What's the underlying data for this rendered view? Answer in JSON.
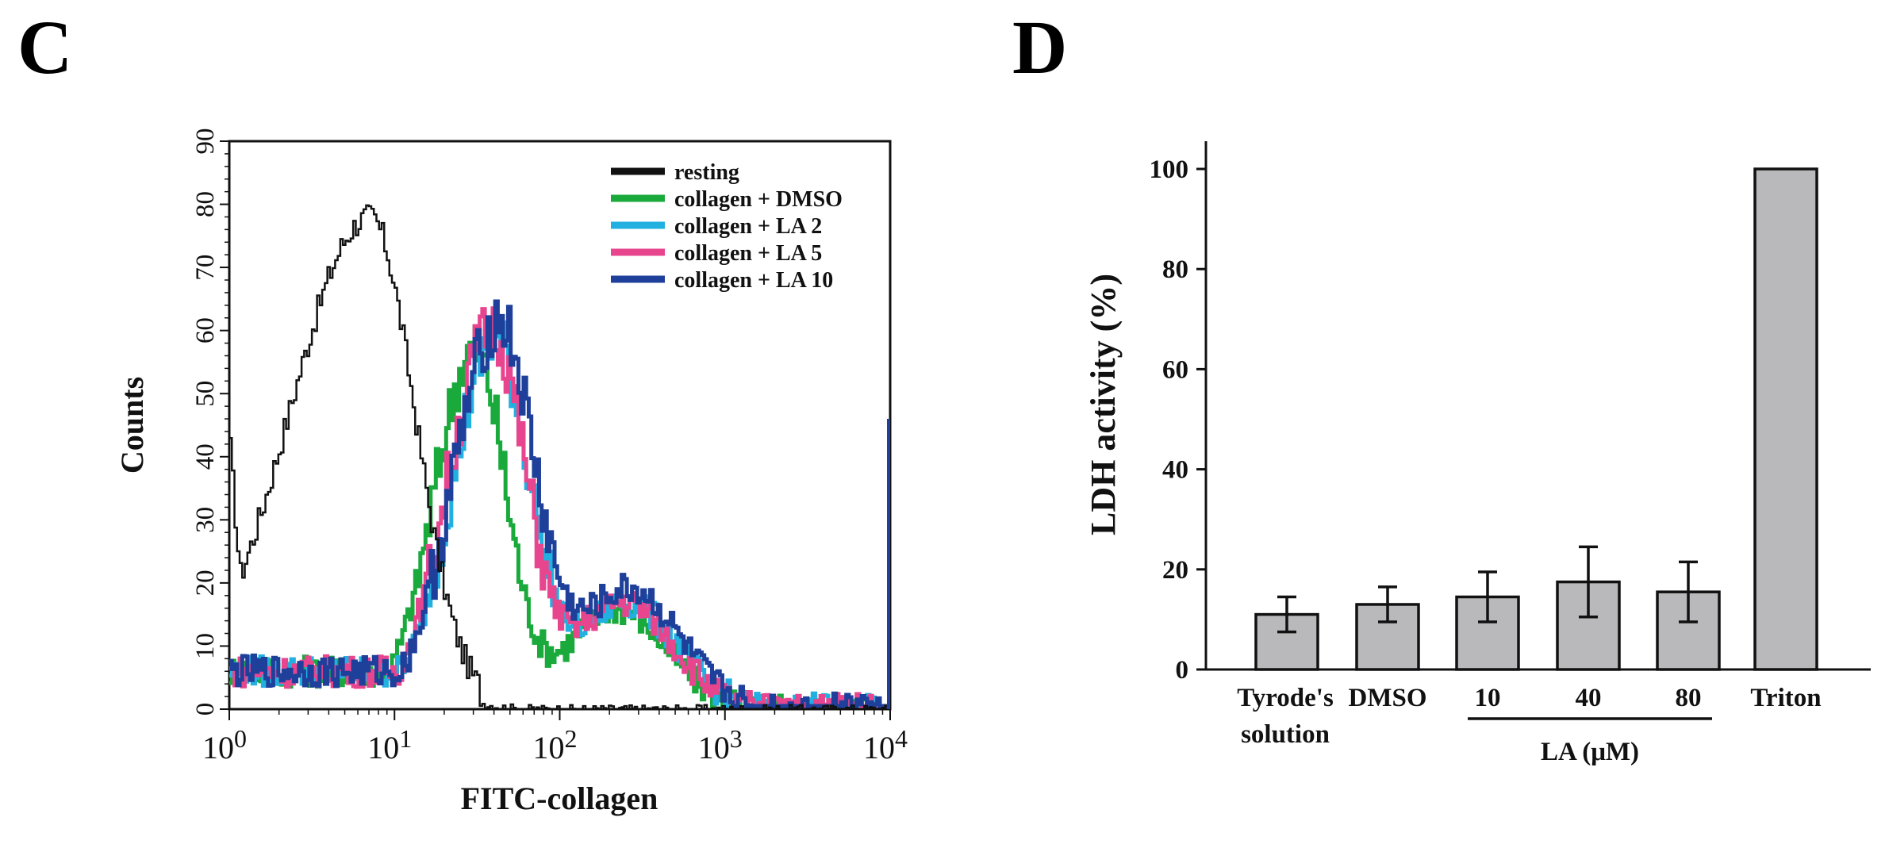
{
  "panels": {
    "c_label": "C",
    "d_label": "D"
  },
  "chart_data": [
    {
      "type": "line",
      "subtype": "flow-cytometry-histogram",
      "title": "",
      "xlabel": "FITC-collagen",
      "ylabel": "Counts",
      "xscale": "log",
      "xlim": [
        1,
        10000
      ],
      "ylim": [
        0,
        90
      ],
      "x_ticks": [
        {
          "base": "10",
          "exp": "0"
        },
        {
          "base": "10",
          "exp": "1"
        },
        {
          "base": "10",
          "exp": "2"
        },
        {
          "base": "10",
          "exp": "3"
        },
        {
          "base": "10",
          "exp": "4"
        }
      ],
      "y_ticks": [
        "0",
        "10",
        "20",
        "30",
        "40",
        "50",
        "60",
        "70",
        "80",
        "90"
      ],
      "legend_position": "top-right",
      "series": [
        {
          "name": "resting",
          "color": "#111111",
          "peak_x": 7,
          "peak_y": 78,
          "width": 0.36,
          "base": 3
        },
        {
          "name": "collagen + DMSO",
          "color": "#1aaa3c",
          "peak_x": 30,
          "peak_y": 57,
          "width": 0.22,
          "base": 6,
          "second_peak_x": 220,
          "second_peak_y": 16
        },
        {
          "name": "collagen + LA 2",
          "color": "#22b0e0",
          "peak_x": 40,
          "peak_y": 58,
          "width": 0.24,
          "base": 6,
          "second_peak_x": 250,
          "second_peak_y": 17
        },
        {
          "name": "collagen + LA 5",
          "color": "#e8458f",
          "peak_x": 38,
          "peak_y": 60,
          "width": 0.24,
          "base": 6,
          "second_peak_x": 240,
          "second_peak_y": 17
        },
        {
          "name": "collagen + LA 10",
          "color": "#1e3f9a",
          "peak_x": 42,
          "peak_y": 61,
          "width": 0.25,
          "base": 6,
          "second_peak_x": 260,
          "second_peak_y": 19
        }
      ]
    },
    {
      "type": "bar",
      "title": "",
      "xlabel": "",
      "ylabel": "LDH activity (%)",
      "ylim": [
        0,
        100
      ],
      "y_ticks": [
        "0",
        "20",
        "40",
        "60",
        "80",
        "100"
      ],
      "categories": [
        "Tyrode's solution",
        "DMSO",
        "10",
        "40",
        "80",
        "Triton"
      ],
      "category_lines": [
        [
          "Tyrode's",
          "solution"
        ],
        [
          "DMSO"
        ],
        [
          "10"
        ],
        [
          "40"
        ],
        [
          "80"
        ],
        [
          "Triton"
        ]
      ],
      "values": [
        11,
        13,
        14.5,
        17.5,
        15.5,
        100
      ],
      "errors": [
        3.5,
        3.5,
        5,
        7,
        6,
        0
      ],
      "bar_color": "#b9b9bb",
      "group_label": "LA (μM)",
      "group_categories": [
        "10",
        "40",
        "80"
      ]
    }
  ]
}
